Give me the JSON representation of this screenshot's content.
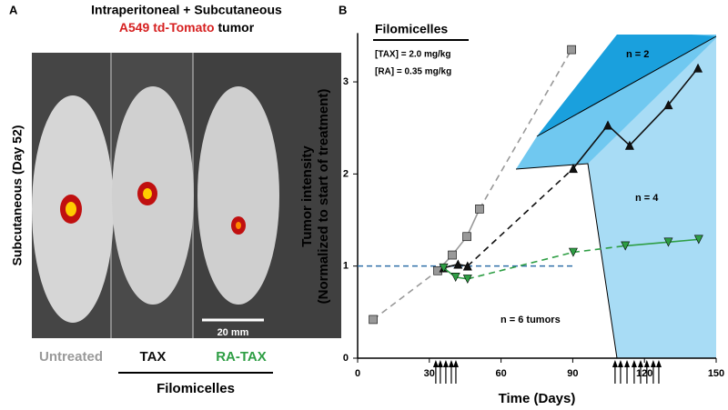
{
  "panel_a": {
    "label": "A",
    "title_line1": "Intraperitoneal + Subcutaneous",
    "title_red": "A549 td-Tomato",
    "title_rest": "tumor",
    "side_label": "Subcutaneous (Day 52)",
    "scale_bar": "20 mm",
    "group_caption": "Filomicelles"
  },
  "chart_data": {
    "type": "line",
    "panel_label": "B",
    "x_label": "Time (Days)",
    "y_label": [
      "Tumor intensity",
      "(Normalized to start of treatment)"
    ],
    "xlim": [
      0,
      150
    ],
    "xticks": [
      0,
      30,
      60,
      90,
      120,
      150
    ],
    "ylim": [
      0,
      3.5
    ],
    "yticks": [
      0,
      1,
      2,
      3
    ],
    "legend_title": "Filomicelles",
    "legend_lines": [
      "[TAX] = 2.0 mg/kg",
      "[RA] = 0.35 mg/kg"
    ],
    "annotations": [
      "n = 2",
      "n = 4",
      "n = 6 tumors"
    ],
    "reference_line": {
      "y": 1,
      "x": [
        0,
        90
      ],
      "color": "#2f6fa8"
    },
    "dose_days": [
      32.7,
      34.6,
      36.9,
      39.2,
      41.1,
      107.7,
      110,
      112.7,
      115.7,
      118.4,
      121,
      123.7,
      126
    ],
    "series": [
      {
        "name": "Untreated",
        "color": "#999999",
        "marker": "square",
        "x": [
          6.5,
          33.5,
          39.6,
          45.7,
          51,
          89.5
        ],
        "values": [
          0.42,
          0.95,
          1.12,
          1.32,
          1.62,
          3.35
        ]
      },
      {
        "name": "TAX",
        "color": "#111111",
        "marker": "triangle",
        "x": [
          36,
          42,
          46,
          90.2,
          104.7,
          113.8,
          130,
          142.4
        ],
        "values": [
          0.98,
          1.02,
          1.0,
          2.06,
          2.53,
          2.31,
          2.75,
          3.15
        ]
      },
      {
        "name": "RA-TAX",
        "color": "#2e9e44",
        "marker": "triangle-down",
        "x": [
          36,
          41,
          46,
          90.2,
          112,
          130,
          142.7
        ],
        "values": [
          0.98,
          0.88,
          0.86,
          1.15,
          1.22,
          1.26,
          1.29
        ]
      }
    ]
  }
}
